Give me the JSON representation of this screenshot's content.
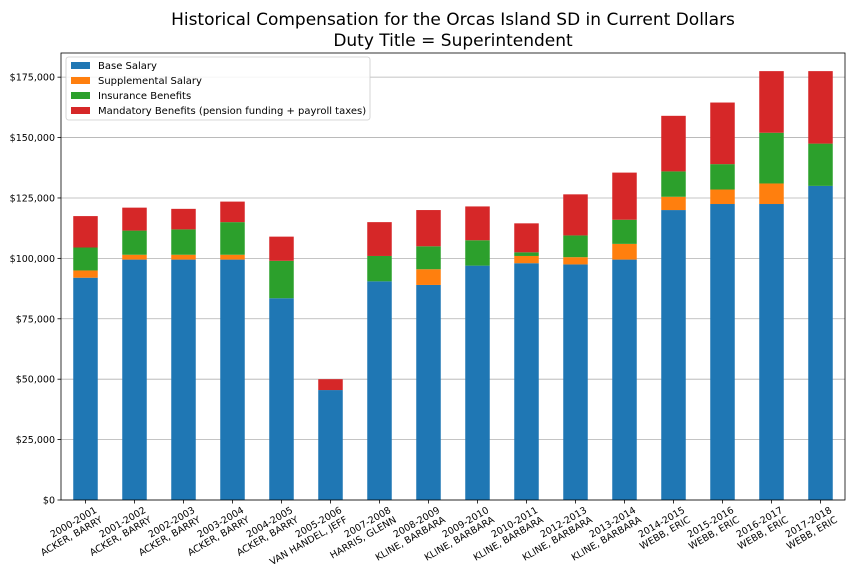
{
  "chart_data": {
    "type": "bar",
    "stacked": true,
    "title": "Historical Compensation for the Orcas Island SD in Current Dollars",
    "subtitle": "Duty Title = Superintendent",
    "xlabel": "",
    "ylabel": "",
    "ylim": [
      0,
      185000
    ],
    "yticks": [
      {
        "value": 0,
        "label": "$0"
      },
      {
        "value": 25000,
        "label": "$25,000"
      },
      {
        "value": 50000,
        "label": "$50,000"
      },
      {
        "value": 75000,
        "label": "$75,000"
      },
      {
        "value": 100000,
        "label": "$100,000"
      },
      {
        "value": 125000,
        "label": "$125,000"
      },
      {
        "value": 150000,
        "label": "$150,000"
      },
      {
        "value": 175000,
        "label": "$175,000"
      }
    ],
    "grid": "horizontal",
    "legend_position": "top-left",
    "categories": [
      {
        "year": "2000-2001",
        "name": "ACKER, BARRY"
      },
      {
        "year": "2001-2002",
        "name": "ACKER, BARRY"
      },
      {
        "year": "2002-2003",
        "name": "ACKER, BARRY"
      },
      {
        "year": "2003-2004",
        "name": "ACKER, BARRY"
      },
      {
        "year": "2004-2005",
        "name": "ACKER, BARRY"
      },
      {
        "year": "2005-2006",
        "name": "VAN HANDEL, JEFF"
      },
      {
        "year": "2007-2008",
        "name": "HARRIS, GLENN"
      },
      {
        "year": "2008-2009",
        "name": "KLINE, BARBARA"
      },
      {
        "year": "2009-2010",
        "name": "KLINE, BARBARA"
      },
      {
        "year": "2010-2011",
        "name": "KLINE, BARBARA"
      },
      {
        "year": "2012-2013",
        "name": "KLINE, BARBARA"
      },
      {
        "year": "2013-2014",
        "name": "KLINE, BARBARA"
      },
      {
        "year": "2014-2015",
        "name": "WEBB, ERIC"
      },
      {
        "year": "2015-2016",
        "name": "WEBB, ERIC"
      },
      {
        "year": "2016-2017",
        "name": "WEBB, ERIC"
      },
      {
        "year": "2017-2018",
        "name": "WEBB, ERIC"
      }
    ],
    "series": [
      {
        "name": "Base Salary",
        "color": "#1f77b4",
        "values": [
          92000,
          99500,
          99500,
          99500,
          83500,
          45500,
          90500,
          89000,
          97000,
          98000,
          97500,
          99500,
          120000,
          122500,
          122500,
          130000
        ]
      },
      {
        "name": "Supplemental Salary",
        "color": "#ff7f0e",
        "values": [
          3000,
          2000,
          2000,
          2000,
          0,
          0,
          0,
          6500,
          0,
          3000,
          3000,
          6500,
          5500,
          6000,
          8500,
          0
        ]
      },
      {
        "name": "Insurance Benefits",
        "color": "#2ca02c",
        "values": [
          9500,
          10000,
          10500,
          13500,
          15500,
          0,
          10500,
          9500,
          10500,
          1500,
          9000,
          10000,
          10500,
          10500,
          21000,
          17500
        ]
      },
      {
        "name": "Mandatory Benefits (pension funding + payroll taxes)",
        "color": "#d62728",
        "values": [
          13000,
          9500,
          8500,
          8500,
          10000,
          4500,
          14000,
          15000,
          14000,
          12000,
          17000,
          19500,
          23000,
          25500,
          25500,
          30000
        ]
      }
    ]
  }
}
